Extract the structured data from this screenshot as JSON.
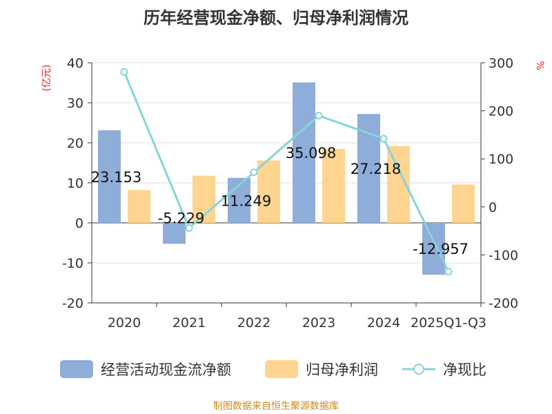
{
  "chart_data": {
    "type": "bar",
    "title": "历年经营现金净额、归母净利润情况",
    "categories": [
      "2020",
      "2021",
      "2022",
      "2023",
      "2024",
      "2025Q1-Q3"
    ],
    "series": [
      {
        "name": "经营活动现金流净额",
        "type": "bar",
        "axis": "left",
        "color": "#8eadd8",
        "values": [
          23.153,
          -5.229,
          11.249,
          35.098,
          27.218,
          -12.957
        ],
        "labels": [
          "23.153",
          "-5.229",
          "11.249",
          "35.098",
          "27.218",
          "-12.957"
        ]
      },
      {
        "name": "归母净利润",
        "type": "bar",
        "axis": "left",
        "color": "#fdd591",
        "values": [
          8.2,
          11.8,
          15.6,
          18.5,
          19.2,
          9.6
        ]
      },
      {
        "name": "净现比",
        "type": "line",
        "axis": "right",
        "color": "#86d4d9",
        "values": [
          281,
          -44,
          72,
          190,
          142,
          -135
        ]
      }
    ],
    "left_axis": {
      "label": "(亿元)",
      "label_color": "#e02020",
      "min": -20,
      "max": 40,
      "ticks": [
        -20,
        -10,
        0,
        10,
        20,
        30,
        40
      ]
    },
    "right_axis": {
      "label": "%",
      "label_color": "#e02020",
      "min": -200,
      "max": 300,
      "ticks": [
        -200,
        -100,
        0,
        100,
        200,
        300
      ]
    },
    "grid": true,
    "legend": "bottom"
  },
  "source_note": "制图数据来自恒生聚源数据库"
}
